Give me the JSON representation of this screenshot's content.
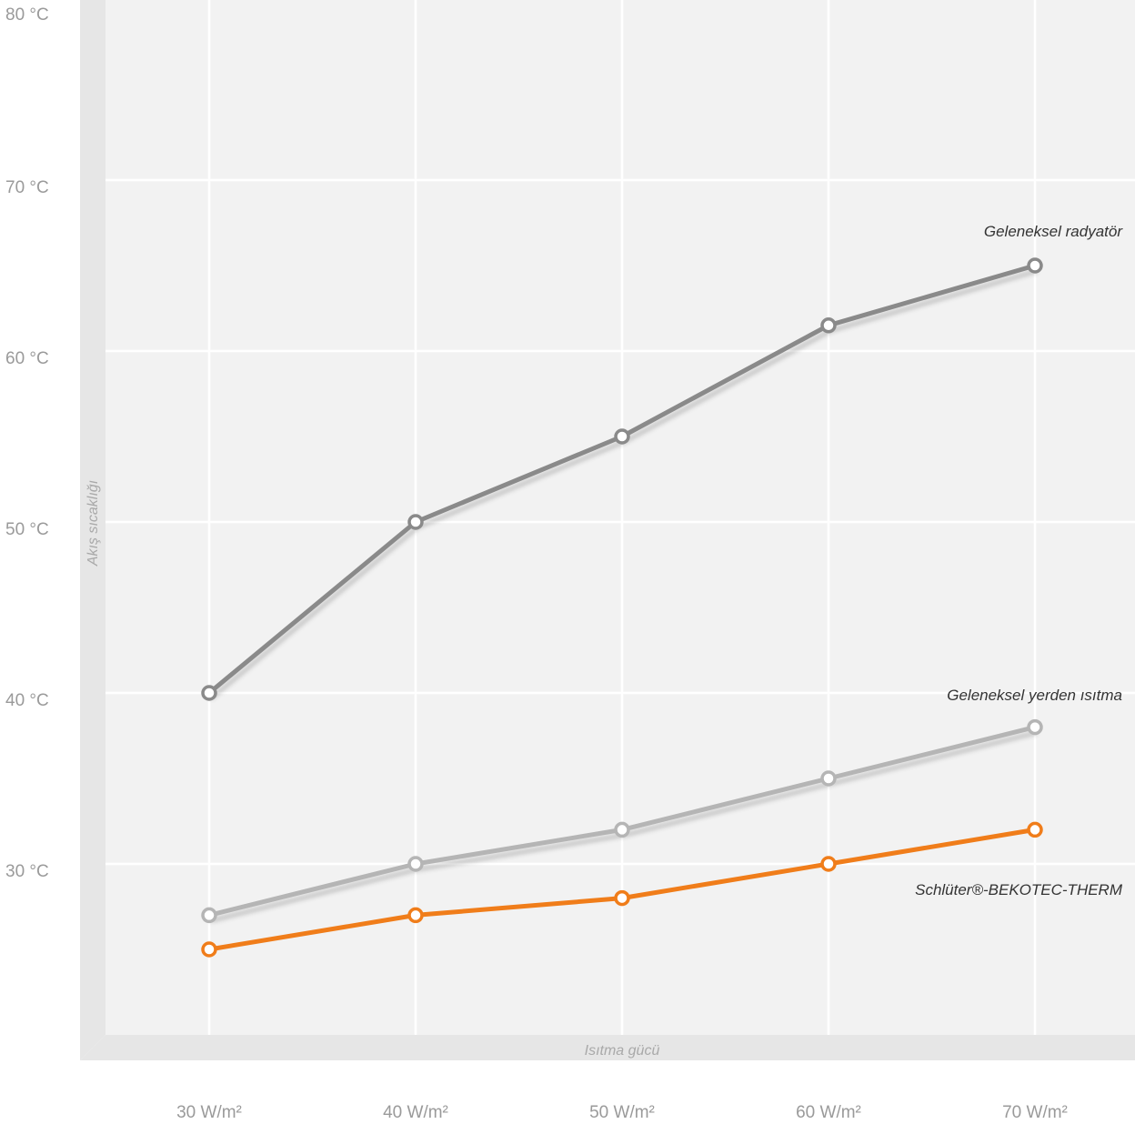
{
  "chart_data": {
    "type": "line",
    "categories": [
      "30 W/m²",
      "40 W/m²",
      "50 W/m²",
      "60 W/m²",
      "70 W/m²"
    ],
    "ylim": [
      20,
      80
    ],
    "yticks": [
      "30 °C",
      "40 °C",
      "50 °C",
      "60 °C",
      "70 °C",
      "80 °C"
    ],
    "xlabel": "Isıtma gücü",
    "ylabel": "Akış sıcaklığı",
    "grid": true,
    "series": [
      {
        "name": "Geleneksel radyatör",
        "values": [
          40,
          50,
          55,
          61.5,
          65
        ],
        "color": "#8a8a8a",
        "shadow": true
      },
      {
        "name": "Geleneksel yerden ısıtma",
        "values": [
          27,
          30,
          32,
          35,
          38
        ],
        "color": "#b5b5b5",
        "shadow": true
      },
      {
        "name": "Schlüter®-BEKOTEC-THERM",
        "values": [
          25,
          27,
          28,
          30,
          32
        ],
        "color": "#f07d1a",
        "shadow": false
      }
    ]
  }
}
